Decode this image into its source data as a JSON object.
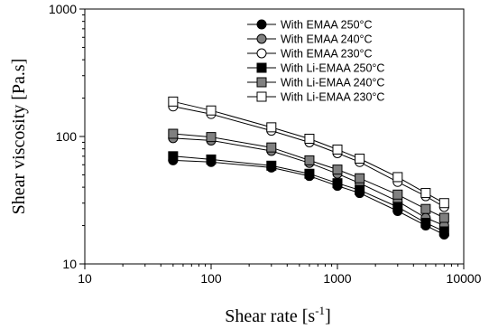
{
  "chart_data": {
    "type": "line",
    "xlabel": "Shear rate [s",
    "xlabel_sup": "-1",
    "xlabel_end": "]",
    "ylabel": "Shear viscosity [Pa.s]",
    "xscale": "log",
    "yscale": "log",
    "xlim": [
      10,
      10000
    ],
    "ylim": [
      10,
      1000
    ],
    "xticks": [
      10,
      100,
      1000,
      10000
    ],
    "xtick_labels": [
      "10",
      "100",
      "1000",
      "10000"
    ],
    "yticks": [
      10,
      100,
      1000
    ],
    "ytick_labels": [
      "10",
      "100",
      "1000"
    ],
    "grid": false,
    "legend_position": "top-right",
    "x": [
      50,
      100,
      300,
      600,
      1000,
      1500,
      3000,
      5000,
      7000
    ],
    "series": [
      {
        "name": "With EMAA 250°C",
        "marker": "circle",
        "fill": "#000000",
        "values": [
          65,
          63,
          57,
          49,
          41,
          36,
          26,
          20,
          17
        ]
      },
      {
        "name": "With EMAA 240°C",
        "marker": "circle",
        "fill": "#808080",
        "values": [
          97,
          93,
          77,
          62,
          51,
          43,
          31,
          23,
          20
        ]
      },
      {
        "name": "With EMAA 230°C",
        "marker": "circle",
        "fill": "#ffffff",
        "values": [
          172,
          150,
          111,
          90,
          74,
          63,
          44,
          34,
          28
        ]
      },
      {
        "name": "With Li-EMAA 250°C",
        "marker": "square",
        "fill": "#000000",
        "values": [
          70,
          66,
          59,
          51,
          43,
          38,
          28,
          21,
          18
        ]
      },
      {
        "name": "With Li-EMAA 240°C",
        "marker": "square",
        "fill": "#808080",
        "values": [
          105,
          99,
          82,
          65,
          55,
          47,
          35,
          27,
          23
        ]
      },
      {
        "name": "With Li-EMAA 230°C",
        "marker": "square",
        "fill": "#ffffff",
        "values": [
          188,
          160,
          118,
          96,
          79,
          67,
          48,
          36,
          30
        ]
      }
    ]
  }
}
